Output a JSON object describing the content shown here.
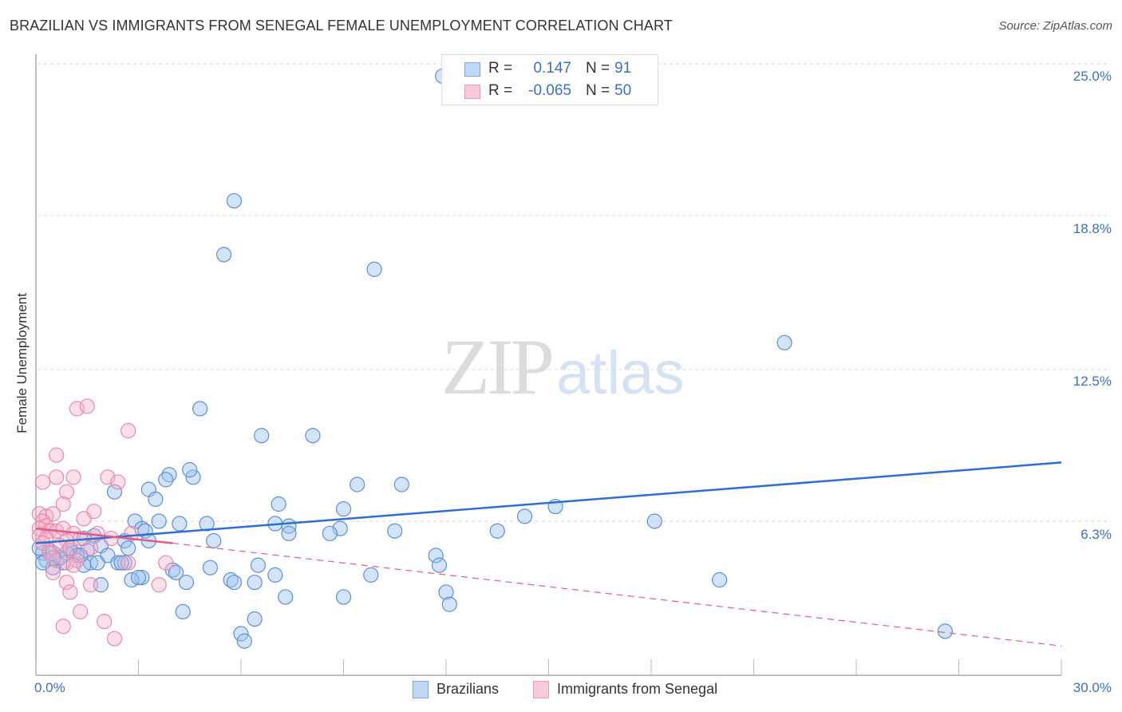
{
  "header": {
    "title": "BRAZILIAN VS IMMIGRANTS FROM SENEGAL FEMALE UNEMPLOYMENT CORRELATION CHART",
    "source": "Source: ZipAtlas.com"
  },
  "watermark": {
    "zip": "ZIP",
    "atlas": "atlas"
  },
  "axes": {
    "ylabel": "Female Unemployment",
    "yticks": [
      "25.0%",
      "18.8%",
      "12.5%",
      "6.3%"
    ],
    "xticks": {
      "left": "0.0%",
      "right": "30.0%"
    }
  },
  "legend_top": {
    "rows": [
      {
        "r_label": "R =",
        "r_value": "0.147",
        "n_label": "N =",
        "n_value": "91",
        "color": "#a9c8f0"
      },
      {
        "r_label": "R =",
        "r_value": "-0.065",
        "n_label": "N =",
        "n_value": "50",
        "color": "#f5b8cb"
      }
    ]
  },
  "legend_bottom": {
    "items": [
      {
        "label": "Brazilians",
        "color": "#a9c8f0"
      },
      {
        "label": "Immigrants from Senegal",
        "color": "#f5b8cb"
      }
    ]
  },
  "colors": {
    "blue_fill": "rgba(160,195,240,0.45)",
    "blue_stroke": "#5b8fd8",
    "blue_line": "#2e6fd0",
    "pink_fill": "rgba(245,175,200,0.40)",
    "pink_stroke": "#e88aa8",
    "pink_line": "#e35b85",
    "tick_text": "#3a70c9"
  },
  "chart_data": {
    "type": "scatter",
    "title": "BRAZILIAN VS IMMIGRANTS FROM SENEGAL FEMALE UNEMPLOYMENT CORRELATION CHART",
    "xlabel": "",
    "ylabel": "Female Unemployment",
    "xlim": [
      0,
      30
    ],
    "ylim": [
      0,
      25
    ],
    "x_tick_labels": [
      "0.0%",
      "30.0%"
    ],
    "y_tick_values": [
      6.3,
      12.5,
      18.8,
      25.0
    ],
    "y_tick_labels": [
      "6.3%",
      "12.5%",
      "18.8%",
      "25.0%"
    ],
    "grid": "horizontal dashed",
    "legend_position": "bottom",
    "series": [
      {
        "name": "Brazilians",
        "R": 0.147,
        "N": 91,
        "trendline": {
          "x": [
            0,
            30
          ],
          "y": [
            5.4,
            8.7
          ],
          "style": "solid"
        },
        "points": [
          [
            11.9,
            24.5
          ],
          [
            5.8,
            19.4
          ],
          [
            5.5,
            17.2
          ],
          [
            9.9,
            16.6
          ],
          [
            21.9,
            13.6
          ],
          [
            4.8,
            10.9
          ],
          [
            6.6,
            9.8
          ],
          [
            8.1,
            9.8
          ],
          [
            4.6,
            8.1
          ],
          [
            3.9,
            8.2
          ],
          [
            4.5,
            8.4
          ],
          [
            3.8,
            8.0
          ],
          [
            3.3,
            7.6
          ],
          [
            2.3,
            7.5
          ],
          [
            9.4,
            7.8
          ],
          [
            10.7,
            7.8
          ],
          [
            3.5,
            7.2
          ],
          [
            7.1,
            7.0
          ],
          [
            9.0,
            6.8
          ],
          [
            15.2,
            6.9
          ],
          [
            14.3,
            6.5
          ],
          [
            18.1,
            6.3
          ],
          [
            2.9,
            6.3
          ],
          [
            3.6,
            6.3
          ],
          [
            4.2,
            6.2
          ],
          [
            5.0,
            6.2
          ],
          [
            7.0,
            6.2
          ],
          [
            7.4,
            6.1
          ],
          [
            3.1,
            6.0
          ],
          [
            3.2,
            5.9
          ],
          [
            8.9,
            6.0
          ],
          [
            10.5,
            5.9
          ],
          [
            13.5,
            5.9
          ],
          [
            7.4,
            5.8
          ],
          [
            8.6,
            5.8
          ],
          [
            1.4,
            5.6
          ],
          [
            1.7,
            5.7
          ],
          [
            5.2,
            5.5
          ],
          [
            2.6,
            5.5
          ],
          [
            1.9,
            5.3
          ],
          [
            2.7,
            5.2
          ],
          [
            0.2,
            5.0
          ],
          [
            0.4,
            5.1
          ],
          [
            0.5,
            5.0
          ],
          [
            1.0,
            5.1
          ],
          [
            1.1,
            5.0
          ],
          [
            1.5,
            5.1
          ],
          [
            2.1,
            4.9
          ],
          [
            0.3,
            4.7
          ],
          [
            0.6,
            4.7
          ],
          [
            0.8,
            4.6
          ],
          [
            1.2,
            4.9
          ],
          [
            1.6,
            4.6
          ],
          [
            2.4,
            4.6
          ],
          [
            2.6,
            4.6
          ],
          [
            2.5,
            4.6
          ],
          [
            11.7,
            4.9
          ],
          [
            11.8,
            4.5
          ],
          [
            0.5,
            4.4
          ],
          [
            1.4,
            4.5
          ],
          [
            6.5,
            4.5
          ],
          [
            5.1,
            4.4
          ],
          [
            4.0,
            4.3
          ],
          [
            4.1,
            4.2
          ],
          [
            3.1,
            4.0
          ],
          [
            2.8,
            3.9
          ],
          [
            4.4,
            3.8
          ],
          [
            5.7,
            3.9
          ],
          [
            5.8,
            3.8
          ],
          [
            6.4,
            3.8
          ],
          [
            7.0,
            4.1
          ],
          [
            9.8,
            4.1
          ],
          [
            20.0,
            3.9
          ],
          [
            1.9,
            3.7
          ],
          [
            12.0,
            3.4
          ],
          [
            9.0,
            3.2
          ],
          [
            7.3,
            3.2
          ],
          [
            12.1,
            2.9
          ],
          [
            4.3,
            2.6
          ],
          [
            6.4,
            2.3
          ],
          [
            6.0,
            1.7
          ],
          [
            6.1,
            1.4
          ],
          [
            26.6,
            1.8
          ],
          [
            0.1,
            5.2
          ],
          [
            0.9,
            5.0
          ],
          [
            1.3,
            4.9
          ],
          [
            0.7,
            4.8
          ],
          [
            0.2,
            4.6
          ],
          [
            1.8,
            4.6
          ],
          [
            3.0,
            4.0
          ],
          [
            3.3,
            5.5
          ]
        ]
      },
      {
        "name": "Immigrants from Senegal",
        "R": -0.065,
        "N": 50,
        "trendline": {
          "x": [
            0,
            4
          ],
          "y": [
            6.0,
            5.4
          ],
          "style": "solid",
          "extended": {
            "x": [
              4,
              30
            ],
            "y": [
              5.4,
              1.2
            ],
            "style": "dashed"
          }
        },
        "points": [
          [
            1.2,
            10.9
          ],
          [
            1.5,
            11.0
          ],
          [
            2.7,
            10.0
          ],
          [
            0.6,
            9.0
          ],
          [
            0.6,
            8.1
          ],
          [
            1.1,
            8.1
          ],
          [
            2.1,
            8.1
          ],
          [
            2.4,
            7.9
          ],
          [
            0.2,
            7.9
          ],
          [
            0.9,
            7.5
          ],
          [
            0.8,
            7.0
          ],
          [
            1.7,
            6.7
          ],
          [
            0.1,
            6.6
          ],
          [
            0.3,
            6.5
          ],
          [
            0.5,
            6.6
          ],
          [
            1.4,
            6.4
          ],
          [
            0.2,
            6.3
          ],
          [
            0.3,
            6.1
          ],
          [
            0.1,
            6.0
          ],
          [
            0.4,
            5.9
          ],
          [
            0.6,
            5.9
          ],
          [
            0.8,
            6.0
          ],
          [
            1.1,
            5.8
          ],
          [
            1.8,
            5.8
          ],
          [
            2.8,
            5.8
          ],
          [
            0.1,
            5.7
          ],
          [
            0.3,
            5.6
          ],
          [
            0.9,
            5.5
          ],
          [
            1.3,
            5.6
          ],
          [
            2.2,
            5.6
          ],
          [
            0.2,
            5.4
          ],
          [
            0.7,
            5.3
          ],
          [
            1.0,
            5.2
          ],
          [
            1.6,
            5.2
          ],
          [
            0.4,
            5.0
          ],
          [
            0.5,
            4.8
          ],
          [
            0.9,
            4.6
          ],
          [
            1.2,
            4.7
          ],
          [
            1.1,
            4.5
          ],
          [
            3.8,
            4.6
          ],
          [
            2.7,
            4.6
          ],
          [
            0.5,
            4.2
          ],
          [
            0.9,
            3.8
          ],
          [
            1.6,
            3.7
          ],
          [
            3.6,
            3.7
          ],
          [
            1.0,
            3.4
          ],
          [
            1.3,
            2.6
          ],
          [
            2.0,
            2.2
          ],
          [
            0.8,
            2.0
          ],
          [
            2.3,
            1.5
          ]
        ]
      }
    ]
  }
}
